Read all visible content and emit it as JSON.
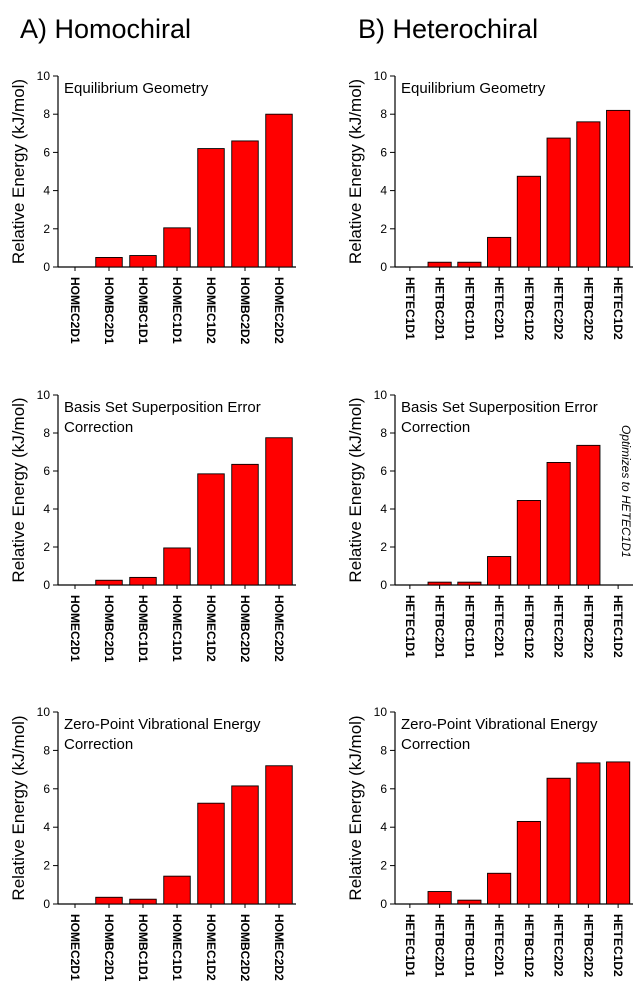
{
  "columns": [
    {
      "title": "A) Homochiral"
    },
    {
      "title": "B) Heterochiral"
    }
  ],
  "chart_data": [
    {
      "type": "bar",
      "title": "Equilibrium Geometry",
      "ylabel": "Relative Energy (kJ/mol)",
      "xlabel": "",
      "ylim": [
        0,
        10
      ],
      "yticks": [
        0,
        2,
        4,
        6,
        8,
        10
      ],
      "categories": [
        "HOMEC2D1",
        "HOMBC2D1",
        "HOMBC1D1",
        "HOMEC1D1",
        "HOMEC1D2",
        "HOMBC2D2",
        "HOMEC2D2"
      ],
      "values": [
        0,
        0.5,
        0.6,
        2.05,
        6.2,
        6.6,
        8.0
      ],
      "bar_color": "#ff0000"
    },
    {
      "type": "bar",
      "title": "Basis Set Superposition Error Correction",
      "ylabel": "Relative Energy (kJ/mol)",
      "xlabel": "",
      "ylim": [
        0,
        10
      ],
      "yticks": [
        0,
        2,
        4,
        6,
        8,
        10
      ],
      "categories": [
        "HOMEC2D1",
        "HOMBC2D1",
        "HOMBC1D1",
        "HOMEC1D1",
        "HOMEC1D2",
        "HOMBC2D2",
        "HOMEC2D2"
      ],
      "values": [
        0,
        0.25,
        0.4,
        1.95,
        5.85,
        6.35,
        7.75
      ],
      "bar_color": "#ff0000"
    },
    {
      "type": "bar",
      "title": "Zero-Point Vibrational Energy Correction",
      "ylabel": "Relative Energy (kJ/mol)",
      "xlabel": "",
      "ylim": [
        0,
        10
      ],
      "yticks": [
        0,
        2,
        4,
        6,
        8,
        10
      ],
      "categories": [
        "HOMEC2D1",
        "HOMBC2D1",
        "HOMBC1D1",
        "HOMEC1D1",
        "HOMEC1D2",
        "HOMBC2D2",
        "HOMEC2D2"
      ],
      "values": [
        0,
        0.35,
        0.25,
        1.45,
        5.25,
        6.15,
        7.2
      ],
      "bar_color": "#ff0000"
    },
    {
      "type": "bar",
      "title": "Equilibrium Geometry",
      "ylabel": "Relative Energy (kJ/mol)",
      "xlabel": "",
      "ylim": [
        0,
        10
      ],
      "yticks": [
        0,
        2,
        4,
        6,
        8,
        10
      ],
      "categories": [
        "HETEC1D1",
        "HETBC2D1",
        "HETBC1D1",
        "HETEC2D1",
        "HETBC1D2",
        "HETEC2D2",
        "HETBC2D2",
        "HETEC1D2"
      ],
      "values": [
        0,
        0.25,
        0.25,
        1.55,
        4.75,
        6.75,
        7.6,
        8.2
      ],
      "bar_color": "#ff0000"
    },
    {
      "type": "bar",
      "title": "Basis Set Superposition Error Correction",
      "ylabel": "Relative Energy (kJ/mol)",
      "xlabel": "",
      "ylim": [
        0,
        10
      ],
      "yticks": [
        0,
        2,
        4,
        6,
        8,
        10
      ],
      "categories": [
        "HETEC1D1",
        "HETBC2D1",
        "HETBC1D1",
        "HETEC2D1",
        "HETBC1D2",
        "HETEC2D2",
        "HETBC2D2",
        "HETEC1D2"
      ],
      "values": [
        0,
        0.15,
        0.15,
        1.5,
        4.45,
        6.45,
        7.35,
        null
      ],
      "annotation": "Optimizes to HETEC1D1",
      "bar_color": "#ff0000"
    },
    {
      "type": "bar",
      "title": "Zero-Point Vibrational Energy Correction",
      "ylabel": "Relative Energy (kJ/mol)",
      "xlabel": "",
      "ylim": [
        0,
        10
      ],
      "yticks": [
        0,
        2,
        4,
        6,
        8,
        10
      ],
      "categories": [
        "HETEC1D1",
        "HETBC2D1",
        "HETBC1D1",
        "HETEC2D1",
        "HETBC1D2",
        "HETEC2D2",
        "HETBC2D2",
        "HETEC1D2"
      ],
      "values": [
        0,
        0.65,
        0.2,
        1.6,
        4.3,
        6.55,
        7.35,
        7.4
      ],
      "bar_color": "#ff0000"
    }
  ]
}
